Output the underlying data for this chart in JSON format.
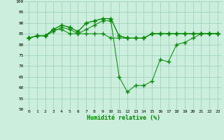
{
  "title": "",
  "xlabel": "Humidité relative (%)",
  "ylabel": "",
  "bg_color": "#cceedd",
  "grid_color": "#99ccbb",
  "line_color": "#008800",
  "marker": "+",
  "marker_size": 4,
  "xlim": [
    -0.5,
    23.5
  ],
  "ylim": [
    50,
    100
  ],
  "yticks": [
    50,
    55,
    60,
    65,
    70,
    75,
    80,
    85,
    90,
    95,
    100
  ],
  "xticks": [
    0,
    1,
    2,
    3,
    4,
    5,
    6,
    7,
    8,
    9,
    10,
    11,
    12,
    13,
    14,
    15,
    16,
    17,
    18,
    19,
    20,
    21,
    22,
    23
  ],
  "series": [
    [
      83,
      84,
      84,
      87,
      87,
      85,
      85,
      85,
      85,
      85,
      83,
      83,
      83,
      83,
      83,
      85,
      85,
      85,
      85,
      85,
      85,
      85,
      85,
      85
    ],
    [
      83,
      84,
      84,
      86,
      88,
      87,
      85,
      87,
      89,
      91,
      91,
      65,
      58,
      61,
      61,
      63,
      73,
      72,
      80,
      81,
      83,
      85,
      85,
      85
    ],
    [
      83,
      84,
      84,
      87,
      89,
      88,
      86,
      90,
      91,
      92,
      92,
      84,
      83,
      83,
      83,
      85,
      85,
      85,
      85,
      85,
      85,
      85,
      85,
      85
    ],
    [
      83,
      84,
      84,
      87,
      89,
      88,
      86,
      90,
      91,
      92,
      92,
      84,
      83,
      83,
      83,
      85,
      85,
      85,
      85,
      85,
      85,
      85,
      85,
      85
    ]
  ]
}
